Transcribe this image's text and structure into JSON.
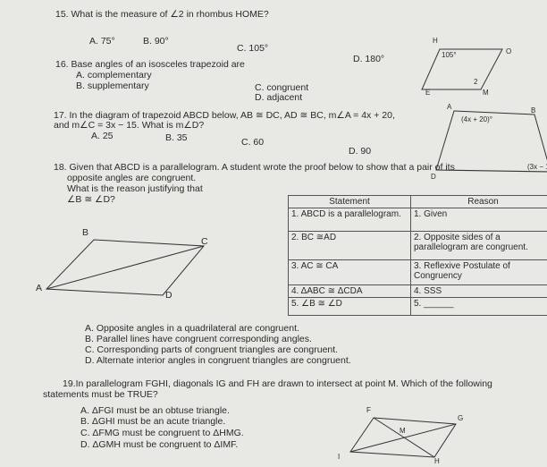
{
  "q15": {
    "text": "15. What is the measure of ∠2 in rhombus HOME?",
    "choices": [
      "A. 75°",
      "B. 90°",
      "C. 105°",
      "D. 180°"
    ],
    "labels": [
      "H",
      "O",
      "105°",
      "2",
      "E",
      "M"
    ]
  },
  "q16": {
    "text": "16. Base angles of an isosceles trapezoid are",
    "choices": [
      "A. complementary",
      "B. supplementary",
      "C. congruent",
      "D. adjacent"
    ]
  },
  "q17": {
    "lines": [
      "17. In the diagram of trapezoid ABCD below, AB ≅ DC, AD ≅ BC, m∠A = 4x + 20,",
      "and m∠C = 3x − 15. What is m∠D?"
    ],
    "choices": [
      "A. 25",
      "B. 35",
      "C. 60",
      "D. 90"
    ],
    "labels": [
      "A",
      "B",
      "(4x + 20)°",
      "D",
      "(3x − 1"
    ]
  },
  "q18": {
    "lines": [
      "18. Given that ABCD is a parallelogram. A student wrote the proof below to show that a pair of its",
      "opposite angles are congruent.",
      "What is the reason justifying that",
      "∠B ≅ ∠D?"
    ],
    "labels": [
      "B",
      "C",
      "A",
      "D"
    ],
    "table": {
      "header": [
        "Statement",
        "Reason"
      ],
      "rows": [
        [
          "1. ABCD is a parallelogram.",
          "1. Given"
        ],
        [
          "2. BC ≅AD",
          "2. Opposite sides of a parallelogram are congruent."
        ],
        [
          "3. AC ≅ CA",
          "3. Reflexive Postulate of Congruency"
        ],
        [
          "4. ΔABC ≅ ΔCDA",
          "4. SSS"
        ],
        [
          "5. ∠B ≅ ∠D",
          "5. ______"
        ]
      ]
    },
    "choices": [
      "A. Opposite angles in a quadrilateral are congruent.",
      "B. Parallel lines have congruent corresponding angles.",
      "C. Corresponding parts of congruent triangles are congruent.",
      "D. Alternate interior angles in congruent triangles are congruent."
    ]
  },
  "q19": {
    "lines": [
      "19.In parallelogram FGHI, diagonals IG and FH are drawn to intersect at point M. Which of the following",
      "statements must be TRUE?"
    ],
    "choices": [
      "A. ΔFGI must be an obtuse triangle.",
      "B. ΔGHI must be an acute triangle.",
      "C. ΔFMG must be congruent to ΔHMG.",
      "D. ΔGMH must be congruent to ΔIMF."
    ],
    "labels": [
      "F",
      "G",
      "M",
      "I",
      "H"
    ]
  }
}
